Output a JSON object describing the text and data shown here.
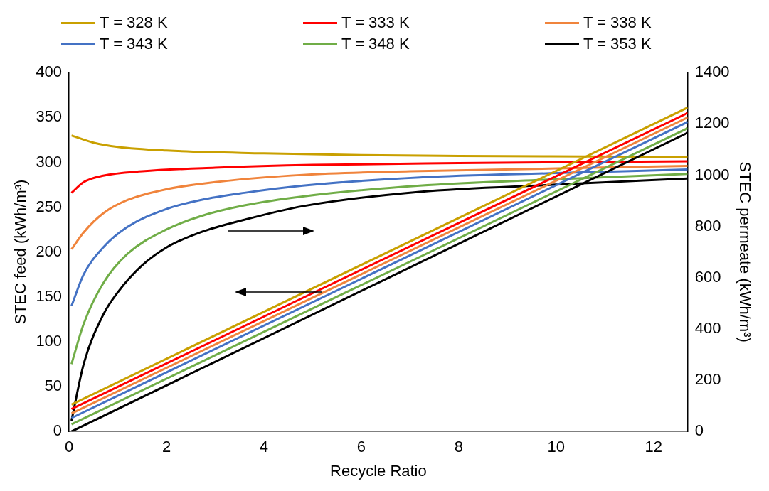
{
  "chart_data": {
    "type": "line",
    "xlabel": "Recycle Ratio",
    "ylabel": "STEC feed (kWh/m³)",
    "y2label": "STEC permeate (kWh/m³)",
    "xlim": [
      0,
      12.7
    ],
    "xticks": [
      0,
      2,
      4,
      6,
      8,
      10,
      12
    ],
    "ylim": [
      0,
      400
    ],
    "yticks": [
      0,
      50,
      100,
      150,
      200,
      250,
      300,
      350,
      400
    ],
    "y2lim": [
      0,
      1400
    ],
    "y2ticks": [
      0,
      200,
      400,
      600,
      800,
      1000,
      1200,
      1400
    ],
    "grid": false,
    "legend": "top",
    "marker": "none",
    "line_style": "solid",
    "series": [
      {
        "name": "T = 328 K",
        "color": "#c9a000",
        "x": [
          0.05,
          12.7
        ],
        "values": [
          30,
          361
        ]
      },
      {
        "name": "T = 333 K",
        "color": "#ff0000",
        "x": [
          0.05,
          12.7
        ],
        "values": [
          25,
          355
        ]
      },
      {
        "name": "T = 338 K",
        "color": "#f0843c",
        "x": [
          0.05,
          12.7
        ],
        "values": [
          20,
          350
        ]
      },
      {
        "name": "T = 343 K",
        "color": "#4472c4",
        "x": [
          0.05,
          12.7
        ],
        "values": [
          15,
          345
        ]
      },
      {
        "name": "T = 348 K",
        "color": "#70ad47",
        "x": [
          0.05,
          12.7
        ],
        "values": [
          8,
          338
        ]
      },
      {
        "name": "T = 353 K",
        "color": "#000000",
        "x": [
          0.05,
          12.7
        ],
        "values": [
          0,
          333
        ]
      },
      {
        "color": "#c9a000",
        "axis": "y2",
        "x": [
          0.05,
          0.5,
          1,
          2,
          4,
          6,
          8,
          12.7
        ],
        "values": [
          1155,
          1127,
          1110,
          1096,
          1085,
          1078,
          1075,
          1071
        ]
      },
      {
        "color": "#ff0000",
        "axis": "y2",
        "x": [
          0.05,
          0.3,
          0.7,
          1.5,
          3,
          5,
          8,
          12.7
        ],
        "values": [
          931,
          973,
          998,
          1015,
          1029,
          1040,
          1047,
          1054
        ]
      },
      {
        "color": "#f0843c",
        "axis": "y2",
        "x": [
          0.05,
          0.3,
          0.7,
          1.2,
          2,
          3,
          4.8,
          7,
          10,
          12.7
        ],
        "values": [
          711,
          777,
          851,
          903,
          945,
          973,
          1001,
          1015,
          1026,
          1036
        ]
      },
      {
        "color": "#4472c4",
        "axis": "y2",
        "x": [
          0.05,
          0.3,
          0.7,
          1.2,
          2,
          2.7,
          3.6,
          4.8,
          7.2,
          10,
          12.7
        ],
        "values": [
          490,
          613,
          718,
          798,
          868,
          903,
          931,
          959,
          991,
          1008,
          1022
        ]
      },
      {
        "color": "#70ad47",
        "axis": "y2",
        "x": [
          0.05,
          0.3,
          0.7,
          1.2,
          2,
          2.7,
          3.6,
          4.8,
          7.2,
          10,
          12.7
        ],
        "values": [
          263,
          420,
          578,
          693,
          788,
          840,
          882,
          917,
          959,
          984,
          1005
        ]
      },
      {
        "color": "#000000",
        "axis": "y2",
        "x": [
          0.05,
          0.3,
          0.7,
          1,
          1.5,
          2,
          2.7,
          3.6,
          4.8,
          7.2,
          10,
          12.7
        ],
        "values": [
          42,
          263,
          455,
          543,
          648,
          718,
          777,
          826,
          879,
          935,
          963,
          987
        ]
      }
    ]
  }
}
